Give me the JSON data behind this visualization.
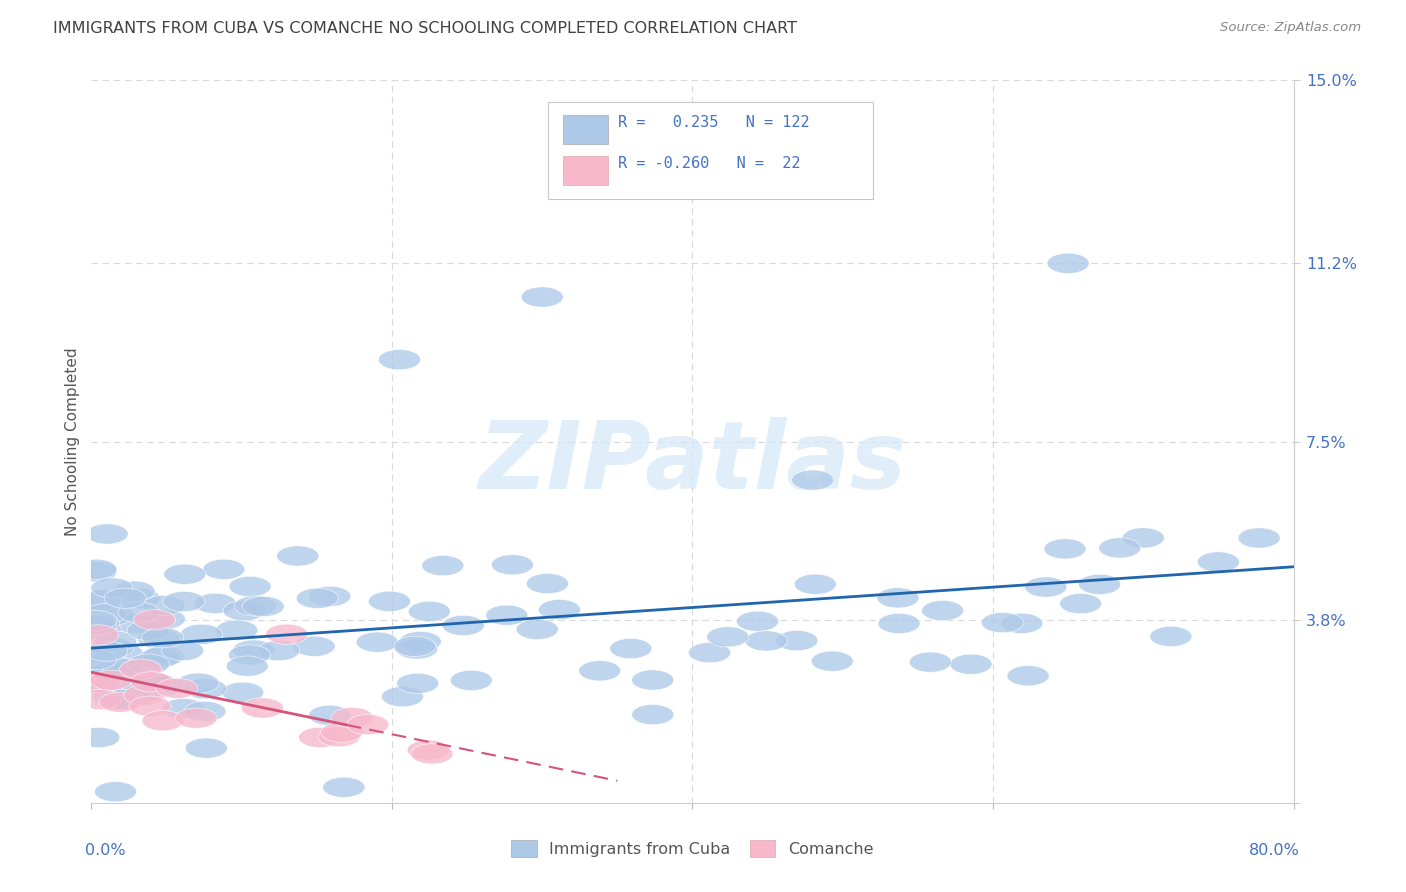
{
  "title": "IMMIGRANTS FROM CUBA VS COMANCHE NO SCHOOLING COMPLETED CORRELATION CHART",
  "source": "Source: ZipAtlas.com",
  "ylabel": "No Schooling Completed",
  "watermark": "ZIPatlas",
  "legend_blue_r": "0.235",
  "legend_blue_n": "122",
  "legend_pink_r": "-0.260",
  "legend_pink_n": "22",
  "blue_color": "#aec9e8",
  "pink_color": "#f7b8cc",
  "blue_line_color": "#2166ac",
  "pink_line_color": "#d6537a",
  "text_blue_color": "#4472c4",
  "title_color": "#404040",
  "axis_label_color": "#4472c4",
  "right_ytick_labels": [
    "",
    "3.8%",
    "7.5%",
    "11.2%",
    "15.0%"
  ],
  "right_ytick_values": [
    0.0,
    3.8,
    7.5,
    11.2,
    15.0
  ],
  "xlim": [
    0,
    80
  ],
  "ylim": [
    0,
    15.0
  ],
  "grid_color": "#d9d9d9",
  "legend_text_color": "#4472c4",
  "background_color": "#ffffff"
}
